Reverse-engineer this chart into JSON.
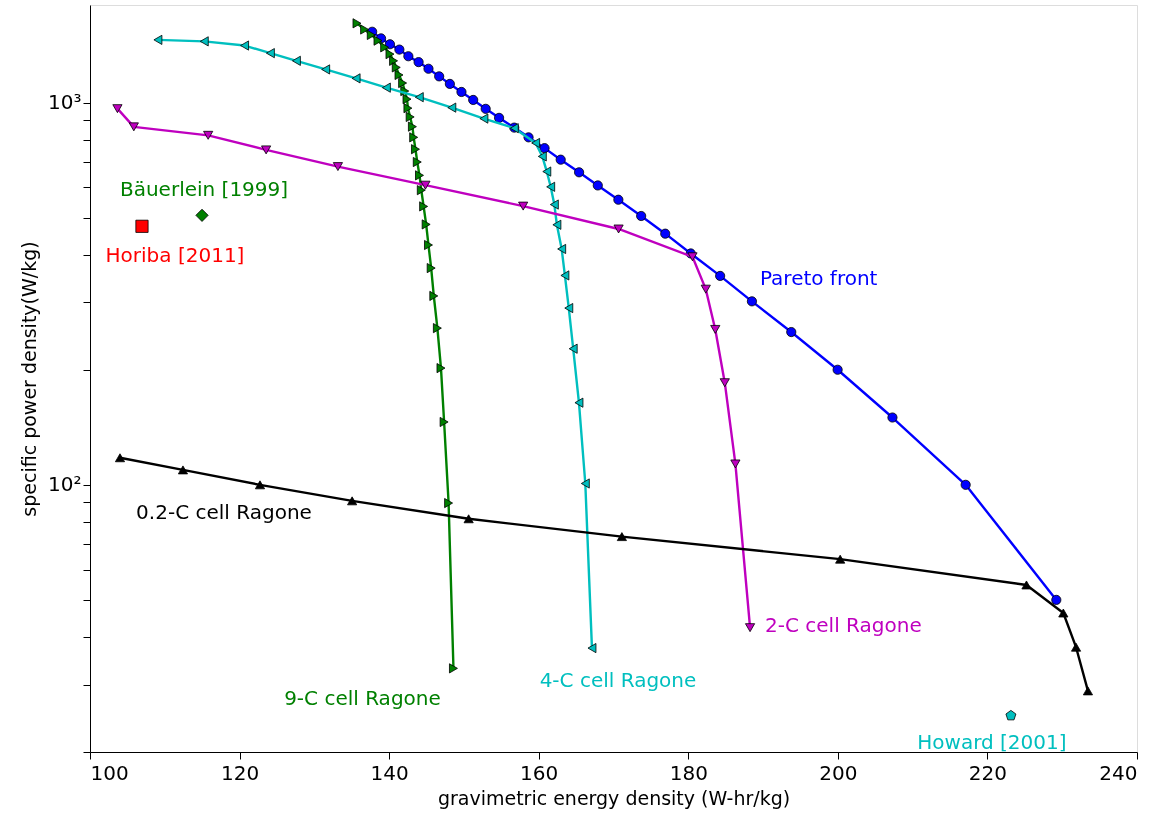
{
  "chart_data": {
    "type": "line",
    "xlabel": "gravimetric energy density (W-hr/kg)",
    "ylabel": "specific power density(W/kg)",
    "xlim": [
      100,
      240
    ],
    "xticks": [
      100,
      120,
      140,
      160,
      180,
      200,
      220,
      240
    ],
    "ylim": [
      20,
      1800
    ],
    "log": "y",
    "yticks": [
      {
        "value": 20,
        "label": null
      },
      {
        "value": 30,
        "label": null
      },
      {
        "value": 40,
        "label": null
      },
      {
        "value": 50,
        "label": null
      },
      {
        "value": 60,
        "label": null
      },
      {
        "value": 70,
        "label": null
      },
      {
        "value": 80,
        "label": null
      },
      {
        "value": 90,
        "label": null
      },
      {
        "value": 100,
        "label": "10²"
      },
      {
        "value": 200,
        "label": null
      },
      {
        "value": 300,
        "label": null
      },
      {
        "value": 400,
        "label": null
      },
      {
        "value": 500,
        "label": null
      },
      {
        "value": 600,
        "label": null
      },
      {
        "value": 700,
        "label": null
      },
      {
        "value": 800,
        "label": null
      },
      {
        "value": 900,
        "label": null
      },
      {
        "value": 1000,
        "label": "10³"
      }
    ],
    "grid": false,
    "line_style": "solid",
    "series": [
      {
        "name": "Pareto front",
        "marker": "circle",
        "color": "#0000ff",
        "x": [
          137.73,
          138.92,
          140.11,
          141.37,
          142.57,
          143.94,
          145.26,
          146.69,
          148.12,
          149.67,
          151.24,
          152.91,
          154.7,
          156.73,
          158.64,
          160.78,
          162.94,
          165.4,
          167.9,
          170.65,
          173.7,
          176.92,
          180.33,
          184.26,
          188.51,
          193.77,
          199.97,
          207.3,
          217.09,
          229.21
        ],
        "values": [
          1532,
          1472,
          1421,
          1376,
          1322,
          1276,
          1226,
          1171,
          1119,
          1066,
          1016,
          963,
          912,
          860,
          811,
          760,
          709,
          657,
          607,
          557,
          505,
          454,
          403,
          352,
          302,
          251,
          200,
          150,
          100,
          50
        ]
      },
      {
        "name": "9-C cell Ragone",
        "marker": "triangle-right",
        "color": "#008000",
        "x": [
          135.7,
          136.72,
          137.61,
          138.51,
          139.4,
          140.11,
          140.59,
          140.95,
          141.32,
          141.8,
          142.09,
          142.39,
          142.51,
          142.81,
          143.11,
          143.28,
          143.52,
          143.76,
          144.06,
          144.3,
          144.61,
          144.95,
          145.26,
          145.62,
          145.97,
          146.45,
          146.93,
          147.35,
          147.95,
          148.6
        ],
        "values": [
          1612,
          1553,
          1503,
          1452,
          1395,
          1339,
          1286,
          1236,
          1181,
          1125,
          1072,
          1021,
          967,
          917,
          865,
          811,
          755,
          699,
          645,
          590,
          535,
          480,
          424,
          369,
          312,
          257,
          202,
          146,
          89.6,
          33.1
        ]
      },
      {
        "name": "4-C cell Ragone",
        "marker": "triangle-left",
        "color": "#00bfbf",
        "x": [
          109.08,
          115.28,
          120.67,
          124.12,
          127.6,
          131.51,
          135.58,
          139.63,
          144.03,
          148.38,
          152.67,
          156.73,
          159.59,
          160.48,
          161.08,
          161.6,
          162.09,
          162.43,
          163.07,
          163.5,
          164.02,
          164.61,
          165.38,
          166.23,
          167.12
        ],
        "values": [
          1459,
          1446,
          1410,
          1347,
          1286,
          1221,
          1157,
          1094,
          1033,
          970,
          908,
          857,
          784,
          723,
          660,
          602,
          541,
          479,
          414,
          353,
          290,
          227,
          164,
          100.8,
          37.4
        ]
      },
      {
        "name": "2-C cell Ragone",
        "marker": "triangle-down",
        "color": "#bf00bf",
        "x": [
          103.67,
          105.86,
          115.8,
          123.55,
          133.15,
          144.85,
          157.92,
          170.68,
          180.56,
          182.34,
          183.61,
          184.88,
          186.3,
          188.26
        ],
        "values": [
          964,
          864,
          821,
          752,
          680,
          608,
          536,
          467,
          395,
          325,
          255,
          185,
          113.4,
          42.3
        ]
      },
      {
        "name": "0.2-C cell Ragone",
        "marker": "triangle",
        "color": "#000000",
        "x": [
          104.01,
          112.43,
          122.73,
          135.05,
          150.63,
          171.12,
          200.31,
          225.22,
          230.15,
          231.85,
          233.44
        ],
        "values": [
          117.7,
          109.4,
          100,
          90.8,
          81.5,
          73.2,
          63.9,
          54.7,
          46.2,
          37.6,
          28.9
        ]
      },
      {
        "name": "Horiba [2011]",
        "type": "scatter",
        "marker": "square",
        "color": "#ff0000",
        "x": [
          106.95
        ],
        "values": [
          474.6
        ]
      },
      {
        "name": "Bäuerlein [1999]",
        "type": "scatter",
        "marker": "diamond",
        "color": "#008000",
        "x": [
          114.98
        ],
        "values": [
          507
        ]
      },
      {
        "name": "Howard [2001]",
        "type": "scatter",
        "color": "#00bfbf",
        "x": [
          223.14
        ],
        "values": [
          24.9
        ]
      }
    ]
  }
}
